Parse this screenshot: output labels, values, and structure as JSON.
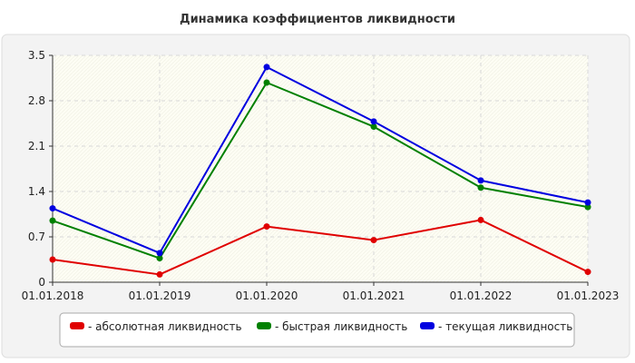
{
  "chart_data": {
    "type": "line",
    "title": "Динамика коэффициентов ликвидности",
    "xlabel": "",
    "ylabel": "",
    "categories": [
      "01.01.2018",
      "01.01.2019",
      "01.01.2020",
      "01.01.2021",
      "01.01.2022",
      "01.01.2023"
    ],
    "y_ticks": [
      "0",
      "0.7",
      "1.4",
      "2.1",
      "2.8",
      "3.5"
    ],
    "ylim": [
      0,
      3.5
    ],
    "grid": true,
    "legend_position": "bottom",
    "series": [
      {
        "name": "- абсолютная ликвидность",
        "color": "#e00000",
        "values": [
          0.35,
          0.12,
          0.86,
          0.65,
          0.96,
          0.16
        ]
      },
      {
        "name": "- быстрая ликвидность",
        "color": "#008000",
        "values": [
          0.95,
          0.37,
          3.08,
          2.4,
          1.46,
          1.16
        ]
      },
      {
        "name": "- текущая ликвидность",
        "color": "#0000e0",
        "values": [
          1.14,
          0.45,
          3.32,
          2.48,
          1.57,
          1.23
        ]
      }
    ]
  }
}
